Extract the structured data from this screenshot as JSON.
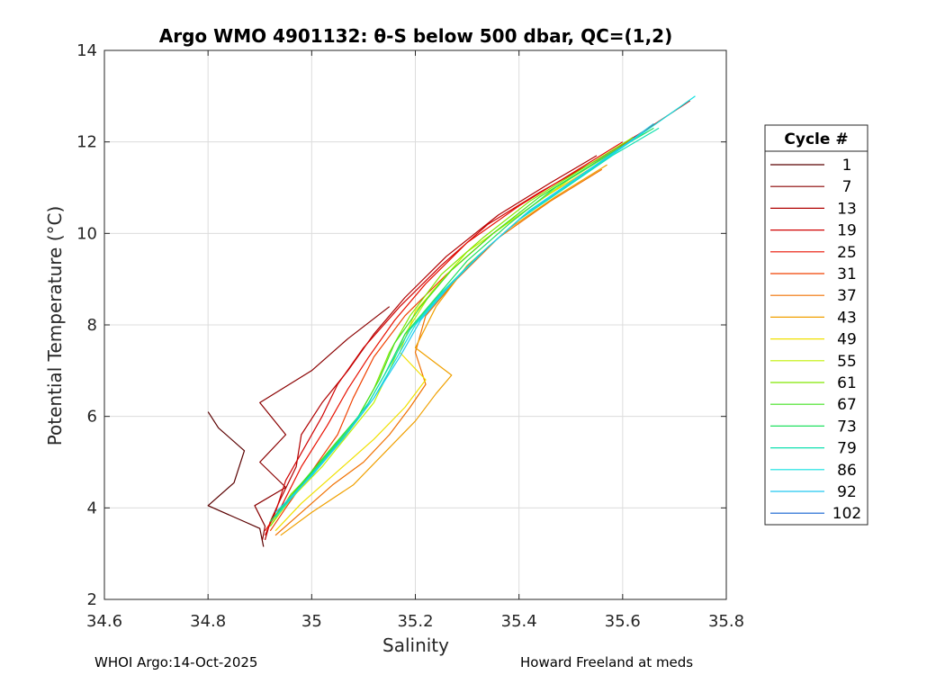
{
  "chart_data": {
    "type": "line",
    "title": "Argo WMO 4901132: θ-S below 500 dbar,  QC=(1,2)",
    "xlabel": "Salinity",
    "ylabel": "Potential Temperature (°C)",
    "xlim": [
      34.6,
      35.8
    ],
    "ylim": [
      2,
      14
    ],
    "x_ticks": [
      34.6,
      34.8,
      35,
      35.2,
      35.4,
      35.6,
      35.8
    ],
    "x_tick_labels": [
      "34.6",
      "34.8",
      "35",
      "35.2",
      "35.4",
      "35.6",
      "35.8"
    ],
    "y_ticks": [
      2,
      4,
      6,
      8,
      10,
      12,
      14
    ],
    "y_tick_labels": [
      "2",
      "4",
      "6",
      "8",
      "10",
      "12",
      "14"
    ],
    "grid": true,
    "legend_title": "Cycle #",
    "legend_position": "right",
    "series": [
      {
        "name": "1",
        "color": "#5a0000",
        "points": [
          [
            34.907,
            3.15
          ],
          [
            34.9,
            3.55
          ],
          [
            34.86,
            3.75
          ],
          [
            34.8,
            4.05
          ],
          [
            34.85,
            4.55
          ],
          [
            34.87,
            5.25
          ],
          [
            34.82,
            5.75
          ],
          [
            34.8,
            6.1
          ]
        ]
      },
      {
        "name": "7",
        "color": "#8a0000",
        "points": [
          [
            34.905,
            3.3
          ],
          [
            34.91,
            3.6
          ],
          [
            34.89,
            4.05
          ],
          [
            34.95,
            4.45
          ],
          [
            34.9,
            5.0
          ],
          [
            34.95,
            5.6
          ],
          [
            34.9,
            6.3
          ],
          [
            35.0,
            7.0
          ],
          [
            35.07,
            7.7
          ],
          [
            35.15,
            8.4
          ]
        ]
      },
      {
        "name": "13",
        "color": "#b00000",
        "points": [
          [
            34.91,
            3.3
          ],
          [
            34.92,
            3.7
          ],
          [
            34.94,
            4.2
          ],
          [
            34.97,
            4.9
          ],
          [
            34.98,
            5.6
          ],
          [
            35.02,
            6.3
          ],
          [
            35.07,
            7.0
          ],
          [
            35.12,
            7.8
          ],
          [
            35.18,
            8.6
          ],
          [
            35.26,
            9.5
          ],
          [
            35.36,
            10.4
          ],
          [
            35.46,
            11.1
          ],
          [
            35.55,
            11.7
          ]
        ]
      },
      {
        "name": "19",
        "color": "#d00000",
        "points": [
          [
            34.91,
            3.4
          ],
          [
            34.93,
            3.9
          ],
          [
            34.95,
            4.6
          ],
          [
            34.99,
            5.4
          ],
          [
            35.02,
            6.0
          ],
          [
            35.05,
            6.7
          ],
          [
            35.1,
            7.5
          ],
          [
            35.17,
            8.4
          ],
          [
            35.25,
            9.3
          ],
          [
            35.34,
            10.2
          ],
          [
            35.44,
            10.9
          ],
          [
            35.55,
            11.6
          ],
          [
            35.65,
            12.3
          ],
          [
            35.73,
            12.9
          ]
        ]
      },
      {
        "name": "25",
        "color": "#e81000",
        "points": [
          [
            34.91,
            3.5
          ],
          [
            34.94,
            4.0
          ],
          [
            34.98,
            4.9
          ],
          [
            35.03,
            5.8
          ],
          [
            35.07,
            6.6
          ],
          [
            35.11,
            7.3
          ],
          [
            35.16,
            8.1
          ],
          [
            35.22,
            8.9
          ],
          [
            35.3,
            9.8
          ],
          [
            35.4,
            10.6
          ],
          [
            35.5,
            11.3
          ],
          [
            35.6,
            12.0
          ]
        ]
      },
      {
        "name": "31",
        "color": "#f04000",
        "points": [
          [
            34.92,
            3.5
          ],
          [
            34.95,
            4.0
          ],
          [
            35.0,
            4.8
          ],
          [
            35.05,
            5.6
          ],
          [
            35.08,
            6.4
          ],
          [
            35.12,
            7.3
          ],
          [
            35.18,
            8.2
          ],
          [
            35.26,
            9.1
          ],
          [
            35.35,
            10.0
          ],
          [
            35.45,
            10.8
          ],
          [
            35.55,
            11.5
          ],
          [
            35.62,
            12.1
          ]
        ]
      },
      {
        "name": "37",
        "color": "#f07000",
        "points": [
          [
            34.93,
            3.4
          ],
          [
            34.98,
            3.9
          ],
          [
            35.04,
            4.5
          ],
          [
            35.1,
            5.0
          ],
          [
            35.15,
            5.6
          ],
          [
            35.19,
            6.2
          ],
          [
            35.22,
            6.7
          ],
          [
            35.2,
            7.4
          ],
          [
            35.22,
            8.2
          ],
          [
            35.28,
            9.0
          ],
          [
            35.36,
            9.9
          ],
          [
            35.46,
            10.7
          ],
          [
            35.56,
            11.4
          ]
        ]
      },
      {
        "name": "43",
        "color": "#f0a000",
        "points": [
          [
            34.94,
            3.4
          ],
          [
            35.0,
            3.9
          ],
          [
            35.08,
            4.5
          ],
          [
            35.14,
            5.2
          ],
          [
            35.2,
            5.9
          ],
          [
            35.24,
            6.5
          ],
          [
            35.27,
            6.9
          ],
          [
            35.2,
            7.5
          ],
          [
            35.24,
            8.4
          ],
          [
            35.3,
            9.3
          ],
          [
            35.38,
            10.1
          ],
          [
            35.47,
            10.8
          ],
          [
            35.57,
            11.5
          ]
        ]
      },
      {
        "name": "49",
        "color": "#f0e000",
        "points": [
          [
            34.93,
            3.5
          ],
          [
            34.98,
            4.1
          ],
          [
            35.05,
            4.8
          ],
          [
            35.12,
            5.5
          ],
          [
            35.18,
            6.2
          ],
          [
            35.22,
            6.8
          ],
          [
            35.17,
            7.4
          ],
          [
            35.2,
            8.3
          ],
          [
            35.27,
            9.2
          ],
          [
            35.35,
            10.0
          ],
          [
            35.45,
            10.8
          ],
          [
            35.55,
            11.5
          ]
        ]
      },
      {
        "name": "55",
        "color": "#c0f000",
        "points": [
          [
            34.92,
            3.6
          ],
          [
            34.96,
            4.2
          ],
          [
            35.02,
            4.9
          ],
          [
            35.07,
            5.6
          ],
          [
            35.12,
            6.3
          ],
          [
            35.15,
            7.0
          ],
          [
            35.18,
            7.8
          ],
          [
            35.23,
            8.7
          ],
          [
            35.3,
            9.6
          ],
          [
            35.4,
            10.4
          ],
          [
            35.5,
            11.2
          ],
          [
            35.6,
            11.9
          ]
        ]
      },
      {
        "name": "61",
        "color": "#80e800",
        "points": [
          [
            34.92,
            3.6
          ],
          [
            34.96,
            4.3
          ],
          [
            35.02,
            5.0
          ],
          [
            35.08,
            5.8
          ],
          [
            35.12,
            6.6
          ],
          [
            35.15,
            7.4
          ],
          [
            35.19,
            8.2
          ],
          [
            35.25,
            9.1
          ],
          [
            35.33,
            9.9
          ],
          [
            35.42,
            10.7
          ],
          [
            35.52,
            11.4
          ],
          [
            35.62,
            12.1
          ]
        ]
      },
      {
        "name": "67",
        "color": "#40e020",
        "points": [
          [
            34.92,
            3.7
          ],
          [
            34.97,
            4.4
          ],
          [
            35.03,
            5.2
          ],
          [
            35.09,
            6.0
          ],
          [
            35.13,
            6.8
          ],
          [
            35.16,
            7.6
          ],
          [
            35.21,
            8.4
          ],
          [
            35.27,
            9.2
          ],
          [
            35.35,
            10.0
          ],
          [
            35.44,
            10.8
          ],
          [
            35.54,
            11.5
          ],
          [
            35.64,
            12.2
          ]
        ]
      },
      {
        "name": "73",
        "color": "#20e060",
        "points": [
          [
            34.92,
            3.7
          ],
          [
            34.98,
            4.5
          ],
          [
            35.04,
            5.3
          ],
          [
            35.1,
            6.1
          ],
          [
            35.14,
            6.9
          ],
          [
            35.18,
            7.8
          ],
          [
            35.24,
            8.6
          ],
          [
            35.3,
            9.4
          ],
          [
            35.38,
            10.2
          ],
          [
            35.47,
            11.0
          ],
          [
            35.57,
            11.7
          ],
          [
            35.66,
            12.3
          ]
        ]
      },
      {
        "name": "79",
        "color": "#10e0b0",
        "points": [
          [
            34.93,
            3.8
          ],
          [
            34.99,
            4.6
          ],
          [
            35.05,
            5.4
          ],
          [
            35.11,
            6.3
          ],
          [
            35.15,
            7.1
          ],
          [
            35.19,
            7.9
          ],
          [
            35.25,
            8.7
          ],
          [
            35.32,
            9.5
          ],
          [
            35.4,
            10.3
          ],
          [
            35.49,
            11.0
          ],
          [
            35.58,
            11.7
          ],
          [
            35.67,
            12.3
          ]
        ]
      },
      {
        "name": "86",
        "color": "#10e0e0",
        "points": [
          [
            34.93,
            3.8
          ],
          [
            34.99,
            4.6
          ],
          [
            35.06,
            5.5
          ],
          [
            35.12,
            6.4
          ],
          [
            35.16,
            7.2
          ],
          [
            35.2,
            8.0
          ],
          [
            35.26,
            8.8
          ],
          [
            35.33,
            9.6
          ],
          [
            35.41,
            10.4
          ],
          [
            35.5,
            11.1
          ],
          [
            35.59,
            11.8
          ],
          [
            35.74,
            13.0
          ]
        ]
      },
      {
        "name": "92",
        "color": "#20c8f0",
        "points": [
          [
            34.93,
            3.9
          ],
          [
            35.0,
            4.7
          ],
          [
            35.06,
            5.5
          ],
          [
            35.12,
            6.4
          ],
          [
            35.17,
            7.3
          ],
          [
            35.21,
            8.1
          ],
          [
            35.27,
            8.9
          ],
          [
            35.34,
            9.7
          ],
          [
            35.42,
            10.5
          ],
          [
            35.51,
            11.2
          ],
          [
            35.6,
            11.9
          ],
          [
            35.66,
            12.4
          ]
        ]
      },
      {
        "name": "102",
        "color": "#1060d0",
        "points": []
      }
    ]
  },
  "footer": {
    "left": "WHOI Argo:14-Oct-2025",
    "right": "Howard Freeland at meds"
  }
}
